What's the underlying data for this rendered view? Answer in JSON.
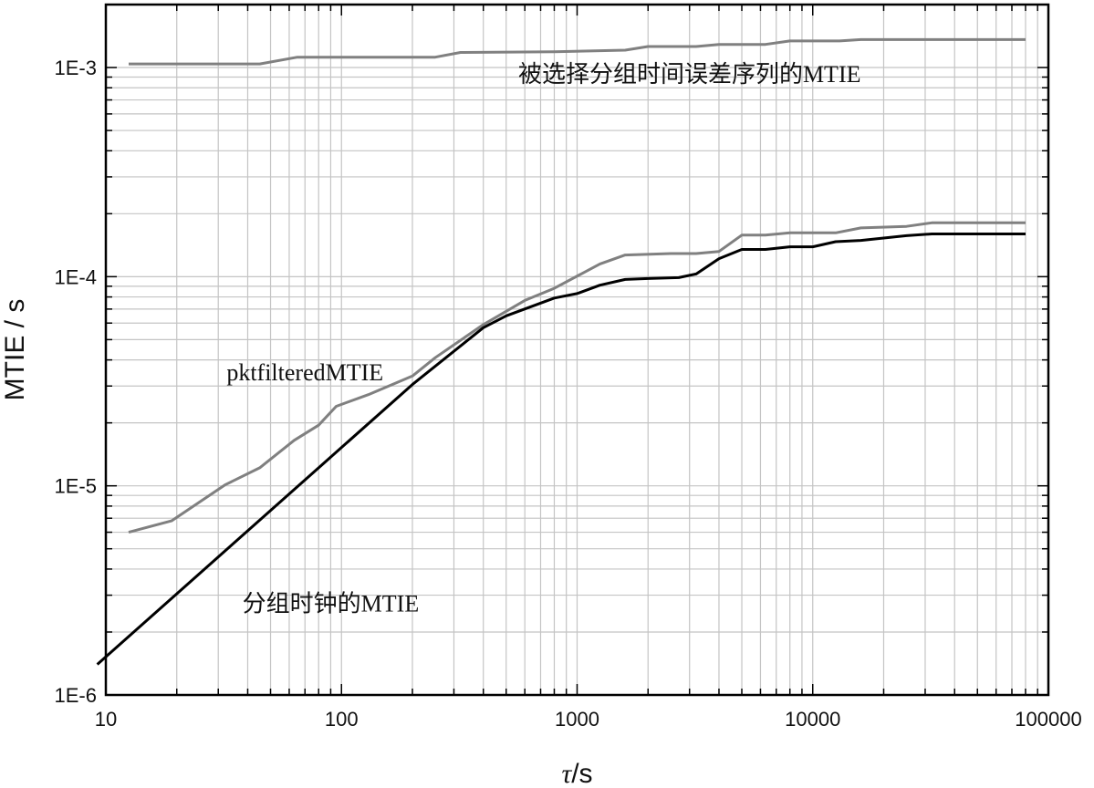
{
  "chart_data": {
    "type": "line",
    "xlabel_symbol": "τ",
    "xlabel_unit": "/s",
    "ylabel": "MTIE / s",
    "x_scale": "log",
    "y_scale": "log",
    "xlim": [
      10,
      100000
    ],
    "ylim": [
      1e-06,
      0.002
    ],
    "grid": true,
    "x_ticks": [
      {
        "value": 10,
        "label": "10"
      },
      {
        "value": 100,
        "label": "100"
      },
      {
        "value": 1000,
        "label": "1000"
      },
      {
        "value": 10000,
        "label": "10000"
      },
      {
        "value": 100000,
        "label": "100000"
      }
    ],
    "y_ticks": [
      {
        "value": 1e-06,
        "label": "1E-6"
      },
      {
        "value": 1e-05,
        "label": "1E-5"
      },
      {
        "value": 0.0001,
        "label": "1E-4"
      },
      {
        "value": 0.001,
        "label": "1E-3"
      }
    ],
    "series": [
      {
        "name": "被选择分组时间误差序列的MTIE",
        "color": "#808080",
        "points": [
          [
            12.5,
            0.00104
          ],
          [
            20,
            0.00104
          ],
          [
            45,
            0.00104
          ],
          [
            65,
            0.00112
          ],
          [
            150,
            0.00112
          ],
          [
            250,
            0.00112
          ],
          [
            320,
            0.00118
          ],
          [
            800,
            0.00119
          ],
          [
            1600,
            0.00121
          ],
          [
            2000,
            0.00126
          ],
          [
            3200,
            0.00126
          ],
          [
            4000,
            0.00129
          ],
          [
            6300,
            0.00129
          ],
          [
            8000,
            0.00134
          ],
          [
            13000,
            0.00134
          ],
          [
            16000,
            0.00136
          ],
          [
            32000,
            0.00136
          ],
          [
            80000,
            0.00136
          ]
        ]
      },
      {
        "name": "pktfilteredMTIE",
        "color": "#808080",
        "points": [
          [
            12.5,
            6e-06
          ],
          [
            19,
            6.8e-06
          ],
          [
            32,
            1.01e-05
          ],
          [
            45,
            1.22e-05
          ],
          [
            63,
            1.65e-05
          ],
          [
            80,
            1.95e-05
          ],
          [
            95,
            2.4e-05
          ],
          [
            130,
            2.73e-05
          ],
          [
            200,
            3.35e-05
          ],
          [
            250,
            4.1e-05
          ],
          [
            400,
            5.9e-05
          ],
          [
            600,
            7.7e-05
          ],
          [
            800,
            8.8e-05
          ],
          [
            1250,
            0.000115
          ],
          [
            1600,
            0.000127
          ],
          [
            2500,
            0.000129
          ],
          [
            3200,
            0.000129
          ],
          [
            4000,
            0.000132
          ],
          [
            5000,
            0.000158
          ],
          [
            6300,
            0.000158
          ],
          [
            8000,
            0.000162
          ],
          [
            12500,
            0.000162
          ],
          [
            16000,
            0.000171
          ],
          [
            25000,
            0.000174
          ],
          [
            32000,
            0.000181
          ],
          [
            80000,
            0.000181
          ]
        ]
      },
      {
        "name": "分组时钟的MTIE",
        "color": "#000000",
        "points": [
          [
            9.2,
            1.4e-06
          ],
          [
            200,
            3.05e-05
          ],
          [
            400,
            5.7e-05
          ],
          [
            500,
            6.5e-05
          ],
          [
            800,
            7.9e-05
          ],
          [
            1000,
            8.3e-05
          ],
          [
            1250,
            9.1e-05
          ],
          [
            1600,
            9.7e-05
          ],
          [
            2000,
            9.8e-05
          ],
          [
            2700,
            9.9e-05
          ],
          [
            3200,
            0.000103
          ],
          [
            4000,
            0.000122
          ],
          [
            5000,
            0.000135
          ],
          [
            6300,
            0.000135
          ],
          [
            8000,
            0.000139
          ],
          [
            10000,
            0.000139
          ],
          [
            12500,
            0.000147
          ],
          [
            16000,
            0.000149
          ],
          [
            25000,
            0.000157
          ],
          [
            32000,
            0.00016
          ],
          [
            80000,
            0.00016
          ]
        ]
      }
    ],
    "annotations": [
      {
        "text": "被选择分组时间误差序列的MTIE",
        "x": 3000,
        "y": 0.00085
      },
      {
        "text": "pktfilteredMTIE",
        "x": 70,
        "y": 3.2e-05
      },
      {
        "text": "分组时钟的MTIE",
        "x": 90,
        "y": 2.5e-06
      }
    ]
  }
}
